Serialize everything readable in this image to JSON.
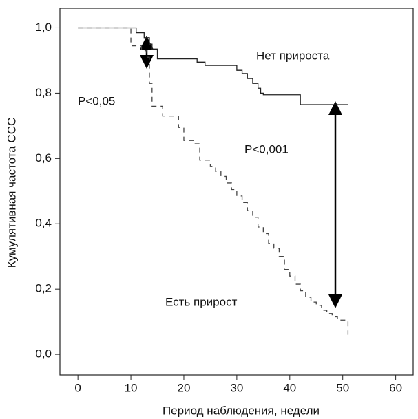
{
  "chart_data": {
    "type": "step",
    "xlabel": "Период наблюдения, недели",
    "ylabel": "Кумулятивная частота ССС",
    "xlim": [
      -3.4,
      63.3
    ],
    "ylim": [
      -0.063,
      1.06
    ],
    "xticks": [
      0,
      10,
      20,
      30,
      40,
      50,
      60
    ],
    "yticks": [
      {
        "value": 0,
        "label": "0,0"
      },
      {
        "value": 0.2,
        "label": "0,2"
      },
      {
        "value": 0.4,
        "label": "0,4"
      },
      {
        "value": 0.6,
        "label": "0,6"
      },
      {
        "value": 0.8,
        "label": "0,8"
      },
      {
        "value": 1,
        "label": "1,0"
      }
    ],
    "annotations": [
      "P<0,05",
      "P<0,001"
    ],
    "series": [
      {
        "name": "Нет прироста",
        "color": "#222222",
        "dash": false,
        "x": [
          0,
          11,
          12.5,
          13.5,
          14,
          15,
          22.5,
          24,
          30,
          31,
          32,
          33,
          34,
          34.5,
          35,
          42,
          51
        ],
        "values": [
          1,
          0.985,
          0.97,
          0.95,
          0.935,
          0.905,
          0.895,
          0.885,
          0.87,
          0.86,
          0.845,
          0.83,
          0.815,
          0.8,
          0.795,
          0.765,
          0.765
        ]
      },
      {
        "name": "Есть прирост",
        "color": "#444444",
        "dash": true,
        "x": [
          0,
          10,
          12,
          13,
          13.5,
          14,
          16,
          19,
          20,
          22,
          23,
          25,
          26,
          27,
          28,
          29,
          30,
          31,
          32,
          33,
          34,
          35,
          36,
          37,
          38,
          39,
          40,
          41,
          42,
          43,
          44,
          45,
          46,
          47,
          48,
          49,
          51
        ],
        "values": [
          1,
          0.945,
          0.93,
          0.91,
          0.83,
          0.76,
          0.73,
          0.695,
          0.655,
          0.645,
          0.595,
          0.575,
          0.56,
          0.545,
          0.525,
          0.505,
          0.485,
          0.465,
          0.44,
          0.42,
          0.39,
          0.37,
          0.34,
          0.325,
          0.3,
          0.26,
          0.24,
          0.215,
          0.195,
          0.175,
          0.16,
          0.15,
          0.135,
          0.125,
          0.115,
          0.105,
          0.06
        ]
      }
    ]
  }
}
